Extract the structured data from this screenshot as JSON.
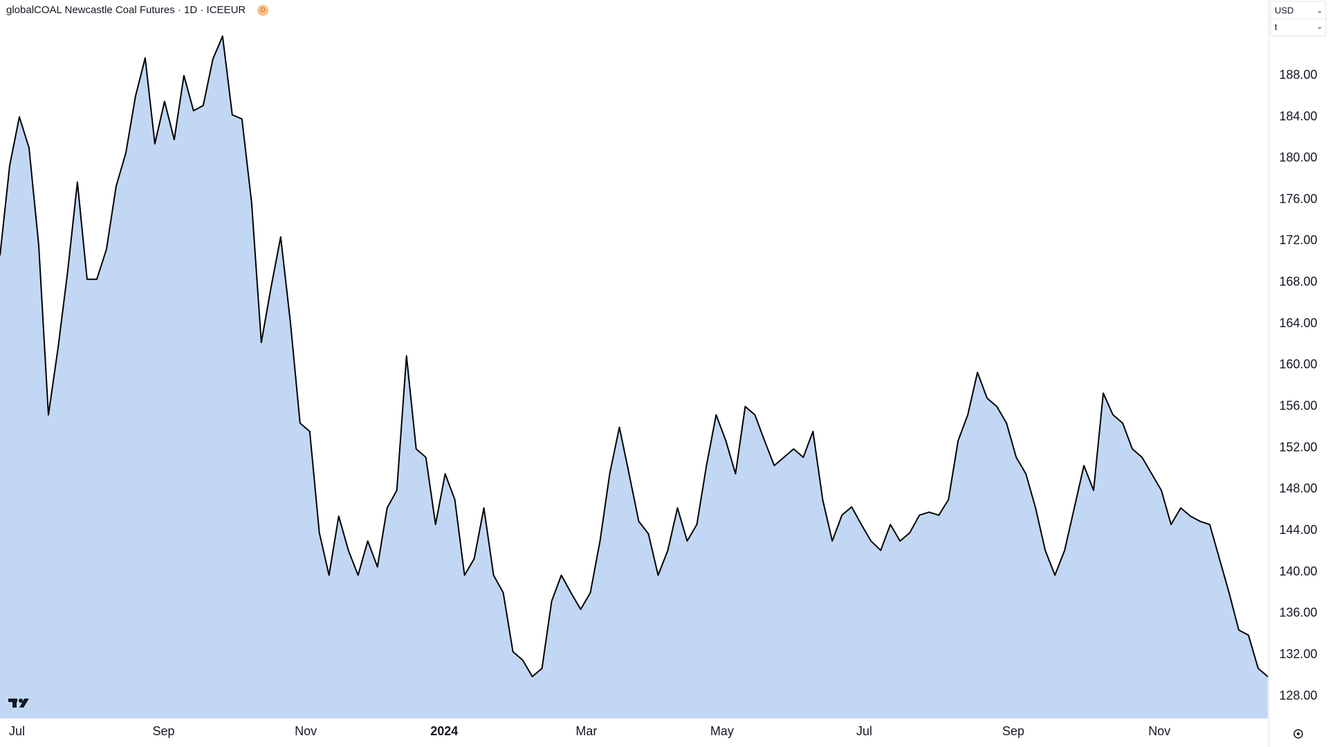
{
  "chart_data": {
    "type": "area",
    "title": "globalCOAL Newcastle Coal Futures · 1D · ICEEUR",
    "badge": "D",
    "currency": "USD",
    "unit": "t",
    "color": "#000000",
    "fill": "#c2d7f3",
    "values": [
      170.6,
      179.3,
      184,
      181,
      171.6,
      155.2,
      161.7,
      169.1,
      177.7,
      168.3,
      168.3,
      171.2,
      177.3,
      180.5,
      186,
      189.7,
      181.4,
      185.5,
      181.8,
      188,
      184.6,
      185.1,
      189.6,
      191.8,
      184.2,
      183.8,
      175.7,
      162.2,
      167.5,
      172.4,
      164.2,
      154.4,
      153.6,
      143.8,
      139.7,
      145.4,
      142.1,
      139.7,
      143,
      140.5,
      146.2,
      147.9,
      160.9,
      151.9,
      151.1,
      144.6,
      149.5,
      147,
      139.7,
      141.3,
      146.2,
      139.7,
      138,
      132.3,
      131.5,
      129.9,
      130.7,
      137.2,
      139.7,
      138,
      136.4,
      138,
      143,
      149.5,
      154,
      149.5,
      144.9,
      143.7,
      139.7,
      142.1,
      146.2,
      143,
      144.6,
      150.3,
      155.2,
      152.7,
      149.5,
      156,
      155.2,
      152.7,
      150.3,
      151.1,
      151.9,
      151.1,
      153.6,
      147,
      143,
      145.5,
      146.3,
      144.6,
      143,
      142.1,
      144.6,
      143,
      143.8,
      145.5,
      145.8,
      145.5,
      147,
      152.7,
      155.2,
      159.3,
      156.8,
      156,
      154.4,
      151.1,
      149.5,
      146.2,
      142.1,
      139.7,
      142.1,
      146.2,
      150.3,
      147.9,
      157.3,
      155.2,
      154.4,
      151.9,
      151.1,
      149.5,
      147.9,
      144.6,
      146.2,
      145.4,
      144.9,
      144.6,
      141.3,
      138,
      134.4,
      133.9,
      130.7,
      129.9
    ],
    "xlim": [
      0,
      131
    ],
    "xticks": [
      {
        "value": 1.75,
        "label": "Jul"
      },
      {
        "value": 16.9,
        "label": "Sep"
      },
      {
        "value": 31.6,
        "label": "Nov"
      },
      {
        "value": 45.9,
        "label": "2024"
      },
      {
        "value": 60.6,
        "label": "Mar"
      },
      {
        "value": 74.6,
        "label": "May"
      },
      {
        "value": 89.3,
        "label": "Jul"
      },
      {
        "value": 104.7,
        "label": "Sep"
      },
      {
        "value": 119.8,
        "label": "Nov"
      }
    ],
    "ylim": [
      125.9,
      195.3
    ],
    "yticks": [
      {
        "value": 128,
        "label": "128.00"
      },
      {
        "value": 132,
        "label": "132.00"
      },
      {
        "value": 136,
        "label": "136.00"
      },
      {
        "value": 140,
        "label": "140.00"
      },
      {
        "value": 144,
        "label": "144.00"
      },
      {
        "value": 148,
        "label": "148.00"
      },
      {
        "value": 152,
        "label": "152.00"
      },
      {
        "value": 156,
        "label": "156.00"
      },
      {
        "value": 160,
        "label": "160.00"
      },
      {
        "value": 164,
        "label": "164.00"
      },
      {
        "value": 168,
        "label": "168.00"
      },
      {
        "value": 172,
        "label": "172.00"
      },
      {
        "value": 176,
        "label": "176.00"
      },
      {
        "value": 180,
        "label": "180.00"
      },
      {
        "value": 184,
        "label": "184.00"
      },
      {
        "value": 188,
        "label": "188.00"
      }
    ]
  }
}
